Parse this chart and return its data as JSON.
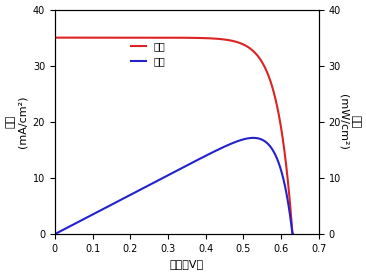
{
  "xlabel": "電圧（V）",
  "ylabel_left_kanji": "電流",
  "ylabel_left_unit": "(mA/cm²)",
  "ylabel_right_kanji": "電力",
  "ylabel_right_unit": "(mW/cm²)",
  "legend_current": "電流",
  "legend_power": "電力",
  "xlim": [
    0,
    0.7
  ],
  "ylim_left": [
    0,
    40
  ],
  "ylim_right": [
    0,
    40
  ],
  "xticks": [
    0,
    0.1,
    0.2,
    0.3,
    0.4,
    0.5,
    0.6,
    0.7
  ],
  "yticks": [
    0,
    10,
    20,
    30,
    40
  ],
  "Isc": 35.0,
  "Voc": 0.63,
  "n_diode": 1.5,
  "color_current": "#dd2222",
  "color_power": "#2222cc",
  "background_color": "#ffffff",
  "linewidth": 1.5,
  "fontsize_label": 8,
  "fontsize_tick": 7,
  "fontsize_legend": 7
}
